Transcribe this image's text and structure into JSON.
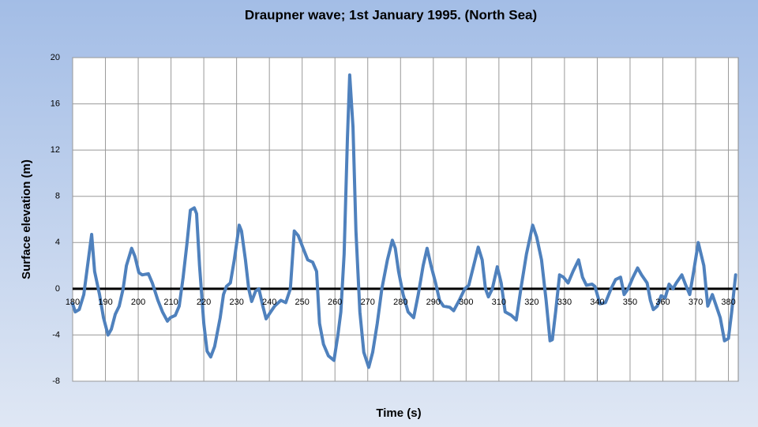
{
  "chart_data": {
    "type": "line",
    "title": "Draupner wave; 1st January 1995. (North Sea)",
    "x_label": "Time (s)",
    "y_label": "Surface elevation (m)",
    "xlim": [
      180,
      383
    ],
    "ylim": [
      -8,
      20
    ],
    "xticks": [
      180,
      190,
      200,
      210,
      220,
      230,
      240,
      250,
      260,
      270,
      280,
      290,
      300,
      310,
      320,
      330,
      340,
      350,
      360,
      370,
      380
    ],
    "yticks": [
      -8,
      -4,
      0,
      4,
      8,
      12,
      16,
      20
    ],
    "grid": true,
    "series": [
      {
        "color": "#4f81bd",
        "x": [
          180,
          180.8,
          182,
          183.4,
          185.8,
          186.7,
          188.2,
          189.4,
          190.8,
          191.8,
          193,
          194.2,
          195.4,
          196.4,
          198,
          199,
          200.2,
          201.2,
          203.1,
          204.3,
          206,
          207.4,
          208.9,
          209.8,
          211.3,
          212.5,
          213.7,
          214.9,
          215.9,
          217.1,
          217.8,
          218.7,
          220,
          221,
          222.1,
          223.3,
          225,
          226,
          226.9,
          228.1,
          229.3,
          230.8,
          231.5,
          232.7,
          233.7,
          234.6,
          235.8,
          236.8,
          238,
          239,
          240.4,
          241.6,
          243.5,
          245,
          246.4,
          247.6,
          248.8,
          250.3,
          251.7,
          253.2,
          254.4,
          255.3,
          256.5,
          258,
          259.7,
          260.9,
          261.8,
          262.8,
          263.8,
          264.5,
          265.5,
          266.4,
          267.6,
          268.8,
          270.3,
          271.5,
          272.9,
          274.3,
          276,
          277.5,
          278.4,
          279.4,
          280.8,
          282.3,
          284,
          285.4,
          286.9,
          288.1,
          289.3,
          290.7,
          291.9,
          293.1,
          295,
          296.2,
          297.9,
          299.6,
          300.8,
          302.3,
          303.7,
          304.9,
          305.9,
          306.8,
          308,
          309.5,
          310.7,
          311.9,
          313.8,
          315.3,
          316.7,
          318.4,
          320.3,
          321.5,
          323,
          324.4,
          325.6,
          326.3,
          327.3,
          328.5,
          329.7,
          331.1,
          332.6,
          334.3,
          335.5,
          336.7,
          338.4,
          339.3,
          340.8,
          342.5,
          344.2,
          345.6,
          347.1,
          348.2,
          349.4,
          350.9,
          352.3,
          353.5,
          355.2,
          356.2,
          357.1,
          358.3,
          359.5,
          360.7,
          361.9,
          363.1,
          364.1,
          365.8,
          367,
          368.2,
          369.4,
          370.8,
          372.5,
          373.7,
          375.1,
          376.3,
          377.5,
          378.8,
          380,
          381,
          382.2
        ],
        "values": [
          -1.3,
          -2,
          -1.8,
          -0.5,
          4.7,
          1.5,
          -0.5,
          -2.5,
          -4,
          -3.5,
          -2.2,
          -1.5,
          0,
          2,
          3.5,
          2.8,
          1.4,
          1.2,
          1.3,
          0.5,
          -1,
          -2,
          -2.8,
          -2.5,
          -2.3,
          -1.5,
          1,
          4,
          6.8,
          7,
          6.5,
          2,
          -3,
          -5.4,
          -5.9,
          -5,
          -2.5,
          -0.5,
          0.2,
          0.5,
          2.5,
          5.5,
          5,
          2.5,
          0,
          -1.1,
          -0.2,
          0,
          -1.5,
          -2.6,
          -2,
          -1.5,
          -1,
          -1.2,
          0,
          5,
          4.6,
          3.5,
          2.5,
          2.3,
          1.5,
          -3,
          -4.8,
          -5.8,
          -6.2,
          -4,
          -2,
          3,
          13,
          18.5,
          14,
          5,
          -2,
          -5.5,
          -6.8,
          -5.5,
          -3,
          0,
          2.5,
          4.2,
          3.5,
          1.5,
          -0.5,
          -2,
          -2.5,
          -0.5,
          2,
          3.5,
          2,
          0.5,
          -1,
          -1.5,
          -1.6,
          -1.9,
          -1,
          0,
          0.3,
          2,
          3.6,
          2.5,
          0,
          -0.7,
          0,
          1.9,
          0.5,
          -2,
          -2.3,
          -2.7,
          0,
          3,
          5.5,
          4.5,
          2.5,
          -1,
          -4.5,
          -4.4,
          -2,
          1.2,
          1,
          0.5,
          1.5,
          2.5,
          1,
          0.3,
          0.4,
          0.2,
          -1.3,
          -1.2,
          0,
          0.8,
          1,
          -0.5,
          0,
          1,
          1.8,
          1.2,
          0.5,
          -1,
          -1.8,
          -1.5,
          -0.6,
          -0.8,
          0.4,
          0,
          0.5,
          1.2,
          0.3,
          -0.5,
          1.5,
          4,
          2,
          -1.5,
          -0.5,
          -1.5,
          -2.5,
          -4.5,
          -4.3,
          -2,
          1.2
        ]
      }
    ]
  }
}
